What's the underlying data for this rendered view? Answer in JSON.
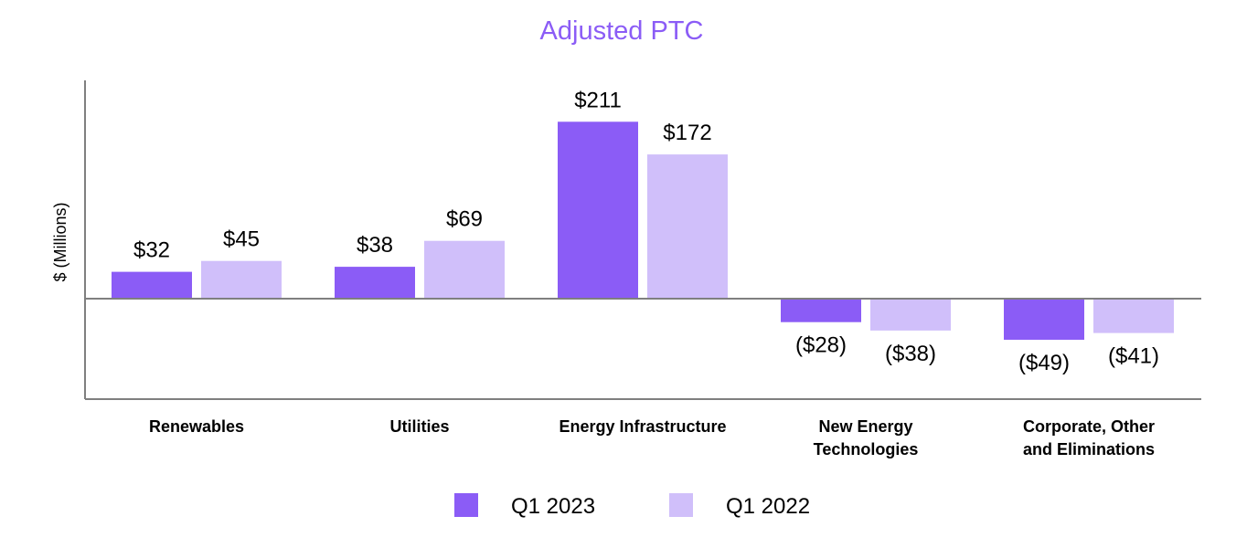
{
  "chart_data": {
    "type": "bar",
    "title": "Adjusted PTC",
    "xlabel": "",
    "ylabel": "$ (Millions)",
    "ylim": [
      -100,
      220
    ],
    "grid": false,
    "legend_position": "bottom-center",
    "categories": [
      [
        "Renewables"
      ],
      [
        "Utilities"
      ],
      [
        "Energy Infrastructure"
      ],
      [
        "New Energy",
        "Technologies"
      ],
      [
        "Corporate, Other",
        "and Eliminations"
      ]
    ],
    "series": [
      {
        "name": "Q1 2023",
        "color": "#8B5CF6",
        "values": [
          32,
          38,
          211,
          -28,
          -49
        ],
        "labels": [
          "$32",
          "$38",
          "$211",
          "($28)",
          "($49)"
        ]
      },
      {
        "name": "Q1 2022",
        "color": "#D0BFFA",
        "values": [
          45,
          69,
          172,
          -38,
          -41
        ],
        "labels": [
          "$45",
          "$69",
          "$172",
          "($38)",
          "($41)"
        ]
      }
    ]
  }
}
